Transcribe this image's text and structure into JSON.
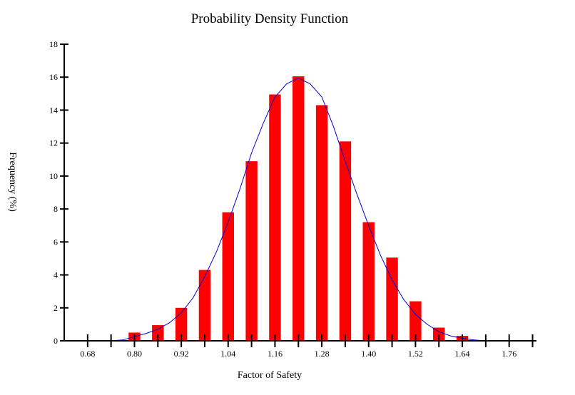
{
  "chart_data": {
    "type": "bar",
    "title": "Probability Density Function",
    "xlabel": "Factor of Safety",
    "ylabel": "Frequency (%)",
    "xlim": [
      0.62,
      1.83
    ],
    "ylim": [
      0,
      18
    ],
    "yticks": [
      0,
      2,
      4,
      6,
      8,
      10,
      12,
      14,
      16,
      18
    ],
    "xtick_labels": [
      "0.68",
      "0.80",
      "0.92",
      "1.04",
      "1.16",
      "1.28",
      "1.40",
      "1.52",
      "1.64",
      "1.76"
    ],
    "bars": {
      "x": [
        0.8,
        0.86,
        0.92,
        0.98,
        1.04,
        1.1,
        1.16,
        1.22,
        1.28,
        1.34,
        1.4,
        1.46,
        1.52,
        1.58,
        1.64
      ],
      "values": [
        0.5,
        0.95,
        2.0,
        4.3,
        7.8,
        10.9,
        14.95,
        16.05,
        14.3,
        12.1,
        7.2,
        5.05,
        2.4,
        0.8,
        0.3
      ],
      "color": "#ff0000"
    },
    "curve": {
      "x": [
        0.74,
        0.77,
        0.8,
        0.83,
        0.86,
        0.89,
        0.92,
        0.95,
        0.98,
        1.01,
        1.04,
        1.07,
        1.1,
        1.13,
        1.16,
        1.19,
        1.22,
        1.25,
        1.28,
        1.31,
        1.34,
        1.37,
        1.4,
        1.43,
        1.46,
        1.49,
        1.52,
        1.55,
        1.58,
        1.61,
        1.64,
        1.67,
        1.7,
        1.73
      ],
      "y": [
        0.0,
        0.05,
        0.25,
        0.45,
        0.7,
        1.1,
        1.7,
        2.6,
        3.9,
        5.4,
        7.2,
        9.2,
        11.4,
        13.2,
        14.8,
        15.6,
        15.95,
        15.6,
        14.8,
        13.0,
        10.9,
        8.9,
        7.0,
        5.2,
        3.7,
        2.5,
        1.6,
        1.0,
        0.55,
        0.3,
        0.15,
        0.05,
        0.0,
        0.0
      ],
      "color": "#0000cc"
    },
    "grid": false,
    "legend": "none"
  }
}
